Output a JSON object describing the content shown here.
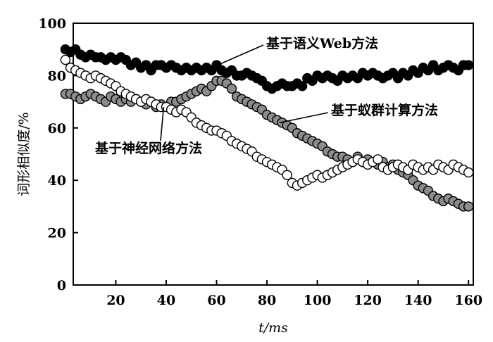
{
  "chart_data": {
    "type": "scatter",
    "title": "",
    "xlabel": "t/ms",
    "ylabel": "词形相似度/%",
    "xlim": [
      0,
      162
    ],
    "ylim": [
      0,
      100
    ],
    "xticks": [
      20,
      40,
      60,
      80,
      100,
      120,
      140,
      160
    ],
    "yticks": [
      0,
      20,
      40,
      60,
      80,
      100
    ],
    "grid": false,
    "series": [
      {
        "name": "基于语义Web方法",
        "marker": "filled-black-circle",
        "color": "#000000",
        "x": [
          0,
          2,
          4,
          6,
          8,
          10,
          12,
          14,
          16,
          18,
          20,
          22,
          24,
          26,
          28,
          30,
          32,
          34,
          36,
          38,
          40,
          42,
          44,
          46,
          48,
          50,
          52,
          54,
          56,
          58,
          60,
          62,
          64,
          66,
          68,
          70,
          72,
          74,
          76,
          78,
          80,
          82,
          84,
          86,
          88,
          90,
          92,
          94,
          96,
          98,
          100,
          102,
          104,
          106,
          108,
          110,
          112,
          114,
          116,
          118,
          120,
          122,
          124,
          126,
          128,
          130,
          132,
          134,
          136,
          138,
          140,
          142,
          144,
          146,
          148,
          150,
          152,
          154,
          156,
          158,
          160
        ],
        "y": [
          90,
          89,
          90,
          88,
          87,
          88,
          87,
          87,
          86,
          87,
          86,
          87,
          86,
          84,
          85,
          83,
          84,
          82,
          84,
          84,
          83,
          84,
          83,
          82,
          83,
          82,
          83,
          82,
          83,
          82,
          84,
          82,
          81,
          82,
          80,
          80,
          81,
          80,
          79,
          78,
          76,
          75,
          76,
          77,
          76,
          76,
          77,
          76,
          79,
          78,
          80,
          79,
          80,
          79,
          78,
          80,
          79,
          80,
          79,
          81,
          80,
          81,
          80,
          79,
          80,
          81,
          79,
          81,
          80,
          82,
          81,
          83,
          82,
          84,
          82,
          83,
          84,
          83,
          82,
          84,
          84
        ]
      },
      {
        "name": "基于蚁群计算方法",
        "marker": "filled-gray-circle",
        "color": "#8c8c8c",
        "x": [
          0,
          2,
          4,
          6,
          8,
          10,
          12,
          14,
          16,
          18,
          20,
          22,
          24,
          26,
          28,
          30,
          32,
          34,
          36,
          38,
          40,
          42,
          44,
          46,
          48,
          50,
          52,
          54,
          56,
          58,
          60,
          62,
          64,
          66,
          68,
          70,
          72,
          74,
          76,
          78,
          80,
          82,
          84,
          86,
          88,
          90,
          92,
          94,
          96,
          98,
          100,
          102,
          104,
          106,
          108,
          110,
          112,
          114,
          116,
          118,
          120,
          122,
          124,
          126,
          128,
          130,
          132,
          134,
          136,
          138,
          140,
          142,
          144,
          146,
          148,
          150,
          152,
          154,
          156,
          158,
          160
        ],
        "y": [
          73,
          73,
          72,
          71,
          72,
          73,
          72,
          71,
          70,
          72,
          71,
          70,
          71,
          70,
          71,
          70,
          69,
          70,
          68,
          69,
          68,
          70,
          70,
          71,
          72,
          73,
          74,
          75,
          74,
          76,
          78,
          78,
          77,
          75,
          72,
          71,
          70,
          69,
          68,
          67,
          65,
          64,
          63,
          62,
          61,
          60,
          58,
          57,
          56,
          55,
          54,
          53,
          51,
          50,
          49,
          49,
          48,
          47,
          49,
          47,
          48,
          47,
          46,
          47,
          45,
          46,
          44,
          43,
          42,
          40,
          38,
          37,
          36,
          34,
          33,
          32,
          33,
          32,
          31,
          30,
          30
        ]
      },
      {
        "name": "基于神经网络方法",
        "marker": "open-circle",
        "color": "#ffffff",
        "x": [
          0,
          2,
          4,
          6,
          8,
          10,
          12,
          14,
          16,
          18,
          20,
          22,
          24,
          26,
          28,
          30,
          32,
          34,
          36,
          38,
          40,
          42,
          44,
          46,
          48,
          50,
          52,
          54,
          56,
          58,
          60,
          62,
          64,
          66,
          68,
          70,
          72,
          74,
          76,
          78,
          80,
          82,
          84,
          86,
          88,
          90,
          92,
          94,
          96,
          98,
          100,
          102,
          104,
          106,
          108,
          110,
          112,
          114,
          116,
          118,
          120,
          122,
          124,
          126,
          128,
          130,
          132,
          134,
          136,
          138,
          140,
          142,
          144,
          146,
          148,
          150,
          152,
          154,
          156,
          158,
          160
        ],
        "y": [
          86,
          83,
          82,
          81,
          80,
          79,
          80,
          79,
          78,
          77,
          76,
          74,
          73,
          72,
          71,
          70,
          71,
          70,
          69,
          68,
          68,
          67,
          66,
          67,
          66,
          64,
          62,
          61,
          60,
          59,
          59,
          58,
          57,
          55,
          54,
          53,
          52,
          51,
          49,
          48,
          47,
          46,
          45,
          44,
          42,
          39,
          38,
          39,
          40,
          41,
          42,
          41,
          42,
          43,
          44,
          45,
          46,
          47,
          48,
          47,
          46,
          47,
          48,
          45,
          44,
          45,
          46,
          45,
          44,
          46,
          45,
          44,
          45,
          44,
          46,
          45,
          44,
          46,
          45,
          44,
          43
        ]
      }
    ],
    "annotations": [
      {
        "text": "基于语义Web方法",
        "target": {
          "x": 58,
          "y": 83
        }
      },
      {
        "text": "基于蚁群计算方法",
        "target": {
          "x": 85,
          "y": 62
        }
      },
      {
        "text": "基于神经网络方法",
        "target": {
          "x": 39,
          "y": 68
        }
      }
    ]
  }
}
